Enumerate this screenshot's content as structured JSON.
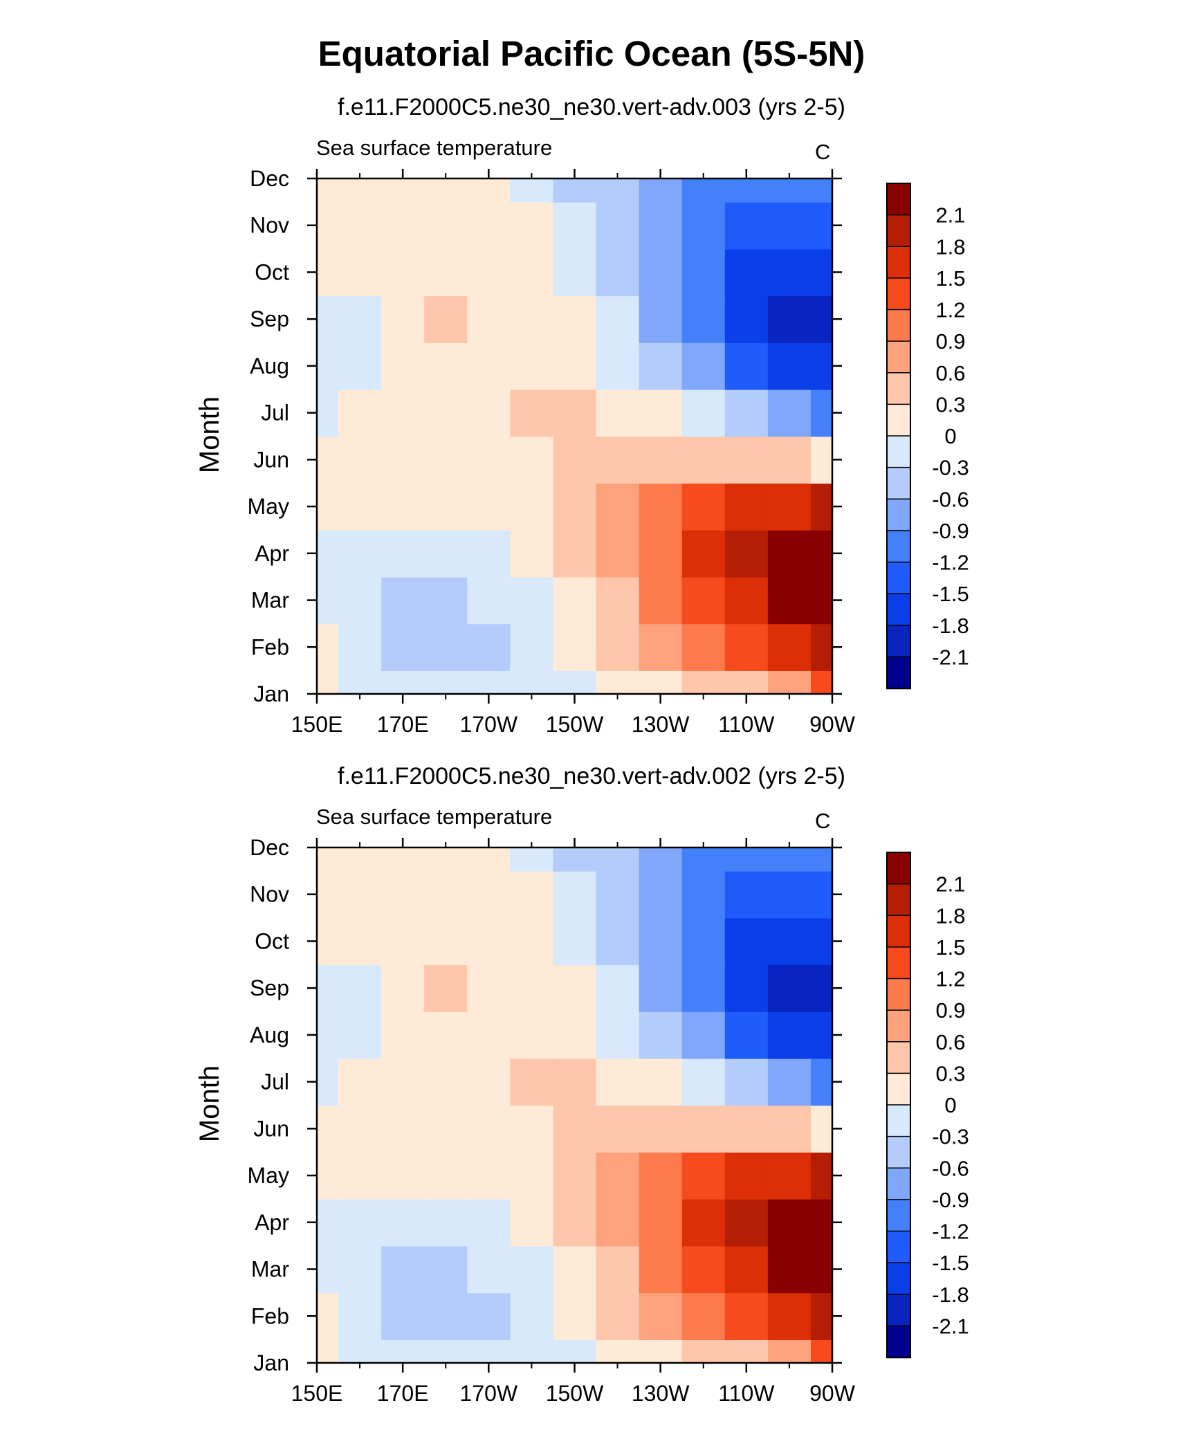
{
  "title": "Equatorial Pacific Ocean (5S-5N)",
  "chart_data": [
    {
      "type": "heatmap",
      "title": "f.e11.F2000C5.ne30_ne30.vert-adv.003 (yrs 2-5)",
      "left_label": "Sea surface temperature",
      "right_label": "C",
      "ylabel": "Month",
      "xlabel": "",
      "x_tick_labels": [
        "150E",
        "170E",
        "170W",
        "150W",
        "130W",
        "110W",
        "90W"
      ],
      "y_tick_labels": [
        "Jan",
        "Feb",
        "Mar",
        "Apr",
        "May",
        "Jun",
        "Jul",
        "Aug",
        "Sep",
        "Oct",
        "Nov",
        "Dec"
      ],
      "xlim_deg_east": [
        150,
        270
      ],
      "x": [
        150,
        160,
        170,
        180,
        190,
        200,
        210,
        220,
        230,
        240,
        250,
        260,
        270
      ],
      "y": [
        "Jan",
        "Feb",
        "Mar",
        "Apr",
        "May",
        "Jun",
        "Jul",
        "Aug",
        "Sep",
        "Oct",
        "Nov",
        "Dec"
      ],
      "z": [
        [
          0.1,
          -0.1,
          -0.2,
          -0.2,
          -0.1,
          -0.1,
          -0.1,
          0.0,
          0.1,
          0.3,
          0.5,
          0.8,
          1.2
        ],
        [
          0.0,
          -0.1,
          -0.4,
          -0.5,
          -0.5,
          -0.3,
          0.0,
          0.3,
          0.6,
          0.9,
          1.2,
          1.5,
          1.9
        ],
        [
          -0.1,
          -0.2,
          -0.4,
          -0.5,
          -0.3,
          -0.1,
          0.2,
          0.5,
          0.9,
          1.3,
          1.7,
          2.1,
          2.4
        ],
        [
          -0.1,
          -0.1,
          -0.3,
          -0.3,
          -0.1,
          0.1,
          0.3,
          0.6,
          1.0,
          1.5,
          1.9,
          2.3,
          2.4
        ],
        [
          0.1,
          0.0,
          0.0,
          0.1,
          0.1,
          0.2,
          0.4,
          0.6,
          0.9,
          1.2,
          1.5,
          1.7,
          1.8
        ],
        [
          0.1,
          0.1,
          0.1,
          0.1,
          0.1,
          0.2,
          0.3,
          0.4,
          0.5,
          0.5,
          0.5,
          0.4,
          0.2
        ],
        [
          -0.1,
          0.0,
          0.1,
          0.1,
          0.2,
          0.3,
          0.3,
          0.2,
          0.0,
          -0.3,
          -0.6,
          -0.9,
          -1.2
        ],
        [
          -0.2,
          -0.1,
          0.1,
          0.1,
          0.2,
          0.2,
          0.1,
          -0.1,
          -0.5,
          -0.9,
          -1.3,
          -1.6,
          -1.7
        ],
        [
          -0.1,
          -0.1,
          0.1,
          0.3,
          0.2,
          0.1,
          0.0,
          -0.3,
          -0.7,
          -1.1,
          -1.6,
          -1.9,
          -2.0
        ],
        [
          0.0,
          0.1,
          0.1,
          0.2,
          0.2,
          0.1,
          -0.1,
          -0.4,
          -0.8,
          -1.2,
          -1.6,
          -1.8,
          -1.8
        ],
        [
          0.1,
          0.1,
          0.1,
          0.2,
          0.1,
          0.0,
          -0.3,
          -0.6,
          -0.9,
          -1.2,
          -1.5,
          -1.5,
          -1.4
        ],
        [
          0.1,
          0.1,
          0.1,
          0.1,
          0.0,
          -0.2,
          -0.4,
          -0.6,
          -0.8,
          -1.0,
          -1.1,
          -1.1,
          -1.0
        ]
      ],
      "levels": [
        -2.1,
        -1.8,
        -1.5,
        -1.2,
        -0.9,
        -0.6,
        -0.3,
        0,
        0.3,
        0.6,
        0.9,
        1.2,
        1.5,
        1.8,
        2.1
      ],
      "colorbar_labels": [
        "2.1",
        "1.8",
        "1.5",
        "1.2",
        "0.9",
        "0.6",
        "0.3",
        "0",
        "-0.3",
        "-0.6",
        "-0.9",
        "-1.2",
        "-1.5",
        "-1.8",
        "-2.1"
      ],
      "colors": [
        "#00008e",
        "#0a24c0",
        "#0a3ee8",
        "#1f5cfb",
        "#4580fb",
        "#81a7fb",
        "#b4ccfb",
        "#d7e9fb",
        "#feead7",
        "#fec6ab",
        "#fda27d",
        "#fd7a4d",
        "#f74a1d",
        "#dc2e07",
        "#b41e05",
        "#880000"
      ],
      "legend": "right"
    },
    {
      "type": "heatmap",
      "title": "f.e11.F2000C5.ne30_ne30.vert-adv.002 (yrs 2-5)",
      "left_label": "Sea surface temperature",
      "right_label": "C",
      "ylabel": "Month",
      "xlabel": "",
      "x_tick_labels": [
        "150E",
        "170E",
        "170W",
        "150W",
        "130W",
        "110W",
        "90W"
      ],
      "y_tick_labels": [
        "Jan",
        "Feb",
        "Mar",
        "Apr",
        "May",
        "Jun",
        "Jul",
        "Aug",
        "Sep",
        "Oct",
        "Nov",
        "Dec"
      ],
      "xlim_deg_east": [
        150,
        270
      ],
      "x": [
        150,
        160,
        170,
        180,
        190,
        200,
        210,
        220,
        230,
        240,
        250,
        260,
        270
      ],
      "y": [
        "Jan",
        "Feb",
        "Mar",
        "Apr",
        "May",
        "Jun",
        "Jul",
        "Aug",
        "Sep",
        "Oct",
        "Nov",
        "Dec"
      ],
      "z": [
        [
          0.1,
          -0.1,
          -0.2,
          -0.2,
          -0.1,
          -0.1,
          -0.1,
          0.0,
          0.1,
          0.3,
          0.5,
          0.8,
          1.2
        ],
        [
          0.0,
          -0.1,
          -0.4,
          -0.5,
          -0.5,
          -0.3,
          0.0,
          0.3,
          0.6,
          0.9,
          1.2,
          1.5,
          1.9
        ],
        [
          -0.1,
          -0.2,
          -0.4,
          -0.5,
          -0.3,
          -0.1,
          0.2,
          0.5,
          0.9,
          1.3,
          1.7,
          2.1,
          2.4
        ],
        [
          -0.1,
          -0.1,
          -0.3,
          -0.3,
          -0.1,
          0.1,
          0.3,
          0.6,
          1.0,
          1.5,
          1.9,
          2.3,
          2.4
        ],
        [
          0.1,
          0.0,
          0.0,
          0.1,
          0.1,
          0.2,
          0.4,
          0.6,
          0.9,
          1.2,
          1.5,
          1.7,
          1.8
        ],
        [
          0.1,
          0.1,
          0.1,
          0.1,
          0.1,
          0.2,
          0.3,
          0.4,
          0.5,
          0.5,
          0.5,
          0.4,
          0.2
        ],
        [
          -0.1,
          0.0,
          0.1,
          0.1,
          0.2,
          0.3,
          0.3,
          0.2,
          0.0,
          -0.3,
          -0.6,
          -0.9,
          -1.2
        ],
        [
          -0.2,
          -0.1,
          0.1,
          0.1,
          0.2,
          0.2,
          0.1,
          -0.1,
          -0.5,
          -0.9,
          -1.3,
          -1.6,
          -1.7
        ],
        [
          -0.1,
          -0.1,
          0.1,
          0.3,
          0.2,
          0.1,
          0.0,
          -0.3,
          -0.7,
          -1.1,
          -1.6,
          -1.9,
          -2.0
        ],
        [
          0.0,
          0.1,
          0.1,
          0.2,
          0.2,
          0.1,
          -0.1,
          -0.4,
          -0.8,
          -1.2,
          -1.6,
          -1.8,
          -1.8
        ],
        [
          0.1,
          0.1,
          0.1,
          0.2,
          0.1,
          0.0,
          -0.3,
          -0.6,
          -0.9,
          -1.2,
          -1.5,
          -1.5,
          -1.4
        ],
        [
          0.1,
          0.1,
          0.1,
          0.1,
          0.0,
          -0.2,
          -0.4,
          -0.6,
          -0.8,
          -1.0,
          -1.1,
          -1.1,
          -1.0
        ]
      ],
      "levels": [
        -2.1,
        -1.8,
        -1.5,
        -1.2,
        -0.9,
        -0.6,
        -0.3,
        0,
        0.3,
        0.6,
        0.9,
        1.2,
        1.5,
        1.8,
        2.1
      ],
      "colorbar_labels": [
        "2.1",
        "1.8",
        "1.5",
        "1.2",
        "0.9",
        "0.6",
        "0.3",
        "0",
        "-0.3",
        "-0.6",
        "-0.9",
        "-1.2",
        "-1.5",
        "-1.8",
        "-2.1"
      ],
      "colors": [
        "#00008e",
        "#0a24c0",
        "#0a3ee8",
        "#1f5cfb",
        "#4580fb",
        "#81a7fb",
        "#b4ccfb",
        "#d7e9fb",
        "#feead7",
        "#fec6ab",
        "#fda27d",
        "#fd7a4d",
        "#f74a1d",
        "#dc2e07",
        "#b41e05",
        "#880000"
      ],
      "legend": "right"
    }
  ]
}
